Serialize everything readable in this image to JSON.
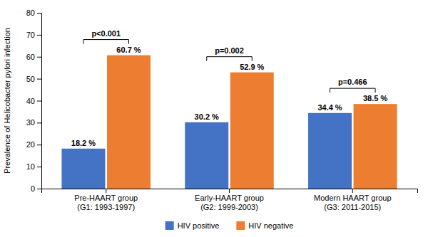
{
  "chart_data": {
    "type": "bar",
    "categories": [
      "Pre-HAART group\n(G1: 1993-1997)",
      "Early-HAART group\n(G2: 1999-2003)",
      "Modern HAART group\n(G3: 2011-2015)"
    ],
    "series": [
      {
        "name": "HIV positive",
        "color": "#4472C4",
        "values": [
          18.2,
          30.2,
          34.4
        ],
        "value_labels": [
          "18.2 %",
          "30.2 %",
          "34.4 %"
        ]
      },
      {
        "name": "HIV negative",
        "color": "#ED7D31",
        "values": [
          60.7,
          52.9,
          38.5
        ],
        "value_labels": [
          "60.7 %",
          "52.9 %",
          "38.5 %"
        ]
      }
    ],
    "ylabel": "Prevalence of Helicobacter pylori infection",
    "annotations": [
      "p<0.001",
      "p=0.002",
      "p=0.466"
    ],
    "ylim": [
      0,
      80
    ],
    "yticks": [
      0,
      10,
      20,
      30,
      40,
      50,
      60,
      70,
      80
    ],
    "grid": false,
    "legend": "bottom",
    "data_labels": true
  }
}
